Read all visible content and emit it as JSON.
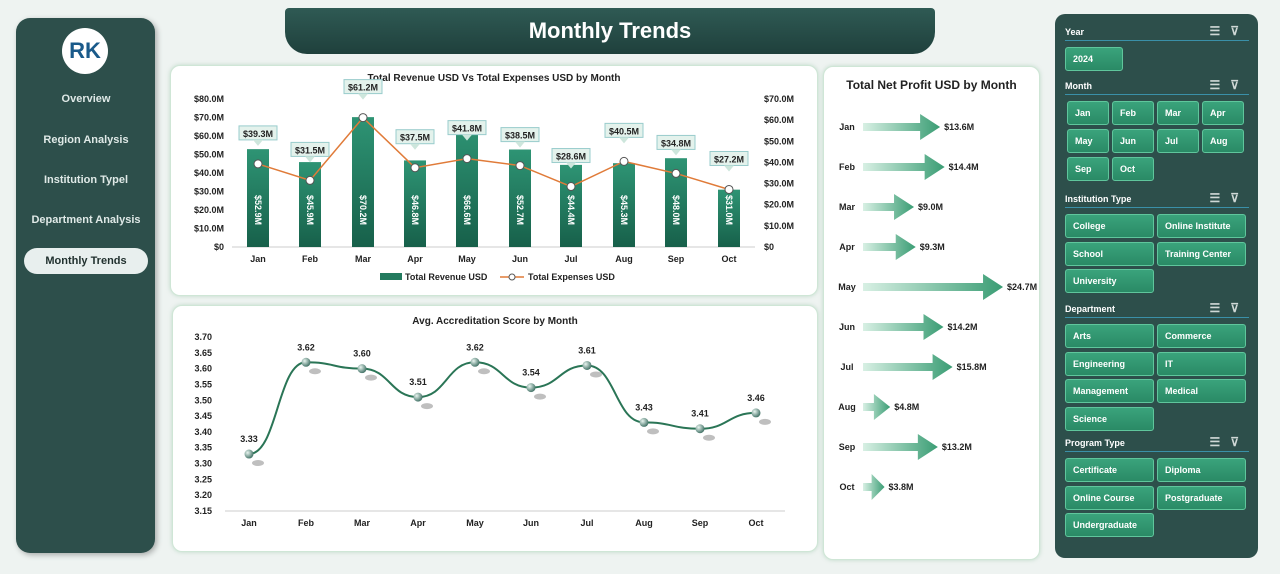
{
  "header": {
    "title": "Monthly Trends"
  },
  "sidebar": {
    "logo_text": "RK",
    "items": [
      {
        "label": "Overview"
      },
      {
        "label": "Region Analysis"
      },
      {
        "label": "Institution Typel"
      },
      {
        "label": "Department Analysis"
      },
      {
        "label": "Monthly Trends",
        "active": true
      }
    ]
  },
  "colors": {
    "bar": "#237a5e",
    "line": "#e07b39",
    "accent": "#2d4f4b"
  },
  "slicers": {
    "year": {
      "label": "Year",
      "options": [
        "2024"
      ]
    },
    "month": {
      "label": "Month",
      "options": [
        "Jan",
        "Feb",
        "Mar",
        "Apr",
        "May",
        "Jun",
        "Jul",
        "Aug",
        "Sep",
        "Oct"
      ]
    },
    "institution": {
      "label": "Institution Type",
      "options": [
        "College",
        "Online Institute",
        "School",
        "Training Center",
        "University"
      ]
    },
    "department": {
      "label": "Department",
      "options": [
        "Arts",
        "Commerce",
        "Engineering",
        "IT",
        "Management",
        "Medical",
        "Science"
      ]
    },
    "program": {
      "label": "Program Type",
      "options": [
        "Certificate",
        "Diploma",
        "Online Course",
        "Postgraduate",
        "Undergraduate"
      ]
    }
  },
  "chart_data": [
    {
      "type": "bar",
      "title": "Total Revenue USD Vs Total Expenses USD by Month",
      "categories": [
        "Jan",
        "Feb",
        "Mar",
        "Apr",
        "May",
        "Jun",
        "Jul",
        "Aug",
        "Sep",
        "Oct"
      ],
      "series": [
        {
          "name": "Total Revenue USD",
          "axis": "left",
          "values": [
            52.9,
            45.9,
            70.2,
            46.8,
            66.6,
            52.7,
            44.4,
            45.3,
            48.0,
            31.0
          ],
          "labels": [
            "$52.9M",
            "$45.9M",
            "$70.2M",
            "$46.8M",
            "$66.6M",
            "$52.7M",
            "$44.4M",
            "$45.3M",
            "$48.0M",
            "$31.0M"
          ]
        },
        {
          "name": "Total Expenses USD",
          "axis": "right",
          "type": "line",
          "values": [
            39.3,
            31.5,
            61.2,
            37.5,
            41.8,
            38.5,
            28.6,
            40.5,
            34.8,
            27.2
          ],
          "labels": [
            "$39.3M",
            "$31.5M",
            "$61.2M",
            "$37.5M",
            "$41.8M",
            "$38.5M",
            "$28.6M",
            "$40.5M",
            "$34.8M",
            "$27.2M"
          ]
        }
      ],
      "ylim_left": [
        0,
        80
      ],
      "yticks_left": [
        "$0",
        "$10.0M",
        "$20.0M",
        "$30.0M",
        "$40.0M",
        "$50.0M",
        "$60.0M",
        "$70.0M",
        "$80.0M"
      ],
      "ylim_right": [
        0,
        70
      ],
      "yticks_right": [
        "$0",
        "$10.0M",
        "$20.0M",
        "$30.0M",
        "$40.0M",
        "$50.0M",
        "$60.0M",
        "$70.0M"
      ],
      "legend": "bottom"
    },
    {
      "type": "line",
      "title": "Avg. Accreditation Score by Month",
      "categories": [
        "Jan",
        "Feb",
        "Mar",
        "Apr",
        "May",
        "Jun",
        "Jul",
        "Aug",
        "Sep",
        "Oct"
      ],
      "values": [
        3.33,
        3.62,
        3.6,
        3.51,
        3.62,
        3.54,
        3.61,
        3.43,
        3.41,
        3.46
      ],
      "labels": [
        "3.33",
        "3.62",
        "3.60",
        "3.51",
        "3.62",
        "3.54",
        "3.61",
        "3.43",
        "3.41",
        "3.46"
      ],
      "ylim": [
        3.15,
        3.7
      ],
      "yticks": [
        "3.15",
        "3.20",
        "3.25",
        "3.30",
        "3.35",
        "3.40",
        "3.45",
        "3.50",
        "3.55",
        "3.60",
        "3.65",
        "3.70"
      ]
    },
    {
      "type": "bar",
      "orientation": "horizontal",
      "title": "Total Net Profit USD by Month",
      "categories": [
        "Jan",
        "Feb",
        "Mar",
        "Apr",
        "May",
        "Jun",
        "Jul",
        "Aug",
        "Sep",
        "Oct"
      ],
      "values": [
        13.6,
        14.4,
        9.0,
        9.3,
        24.7,
        14.2,
        15.8,
        4.8,
        13.2,
        3.8
      ],
      "labels": [
        "$13.6M",
        "$14.4M",
        "$9.0M",
        "$9.3M",
        "$24.7M",
        "$14.2M",
        "$15.8M",
        "$4.8M",
        "$13.2M",
        "$3.8M"
      ]
    }
  ]
}
